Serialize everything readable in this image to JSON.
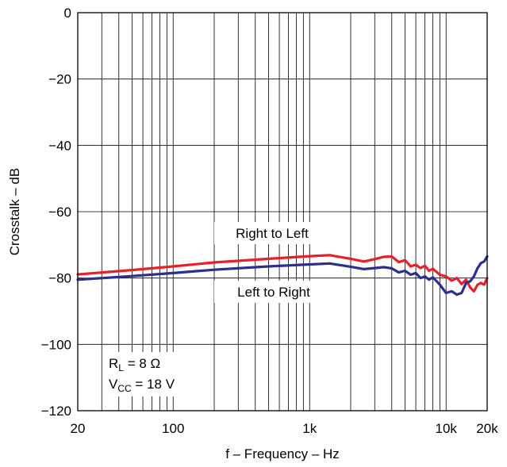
{
  "chart_data": {
    "type": "line",
    "title": "",
    "xlabel": "f – Frequency – Hz",
    "ylabel": "Crosstalk – dB",
    "x_scale": "log",
    "xlim": [
      20,
      20000
    ],
    "ylim": [
      -120,
      0
    ],
    "grid": true,
    "x_ticks": [
      {
        "value": 20,
        "label": "20"
      },
      {
        "value": 100,
        "label": "100"
      },
      {
        "value": 1000,
        "label": "1k"
      },
      {
        "value": 10000,
        "label": "10k"
      },
      {
        "value": 20000,
        "label": "20k"
      }
    ],
    "y_ticks": [
      {
        "value": 0,
        "label": "0"
      },
      {
        "value": -20,
        "label": "−20"
      },
      {
        "value": -40,
        "label": "−40"
      },
      {
        "value": -60,
        "label": "−60"
      },
      {
        "value": -80,
        "label": "−80"
      },
      {
        "value": -100,
        "label": "−100"
      },
      {
        "value": -120,
        "label": "−120"
      }
    ],
    "annotations": {
      "right_to_left": "Right to Left",
      "left_to_right": "Left to Right",
      "rl_main": "R",
      "rl_sub": "L",
      "rl_rest": " = 8 Ω",
      "vcc_main": "V",
      "vcc_sub": "CC",
      "vcc_rest": " = 18 V"
    },
    "series": [
      {
        "color": "#e8202a",
        "x": [
          20,
          50,
          100,
          200,
          500,
          1000,
          1400,
          2000,
          2500,
          3000,
          3500,
          4000,
          4500,
          5000,
          5500,
          6000,
          6500,
          7000,
          7500,
          8000,
          9000,
          10000,
          11000,
          12000,
          13000,
          14000,
          15000,
          16000,
          17000,
          18000,
          19000,
          20000
        ],
        "y": [
          -78.9,
          -77.6,
          -76.5,
          -75.3,
          -74.2,
          -73.4,
          -73.1,
          -74.2,
          -75.0,
          -74.3,
          -73.6,
          -73.5,
          -75.2,
          -74.6,
          -76.5,
          -76.0,
          -77.0,
          -76.3,
          -77.8,
          -77.2,
          -79.0,
          -79.5,
          -80.8,
          -80.0,
          -81.8,
          -80.5,
          -82.8,
          -84.0,
          -82.0,
          -81.5,
          -82.0,
          -80.0
        ]
      },
      {
        "color": "#2b2f8f",
        "x": [
          20,
          50,
          100,
          200,
          500,
          1000,
          1400,
          2000,
          2500,
          3000,
          3500,
          4000,
          4500,
          5000,
          5500,
          6000,
          6500,
          7000,
          7500,
          8000,
          9000,
          10000,
          11000,
          12000,
          13000,
          14000,
          15000,
          16000,
          17000,
          18000,
          19000,
          20000
        ],
        "y": [
          -80.5,
          -79.4,
          -78.5,
          -77.5,
          -76.5,
          -75.9,
          -75.6,
          -76.6,
          -77.3,
          -77.0,
          -76.7,
          -77.1,
          -78.3,
          -77.8,
          -79.0,
          -78.5,
          -80.0,
          -79.5,
          -80.5,
          -79.8,
          -82.0,
          -84.5,
          -84.0,
          -85.0,
          -84.5,
          -81.5,
          -81.0,
          -79.5,
          -77.0,
          -75.5,
          -75.0,
          -73.5
        ]
      }
    ]
  }
}
